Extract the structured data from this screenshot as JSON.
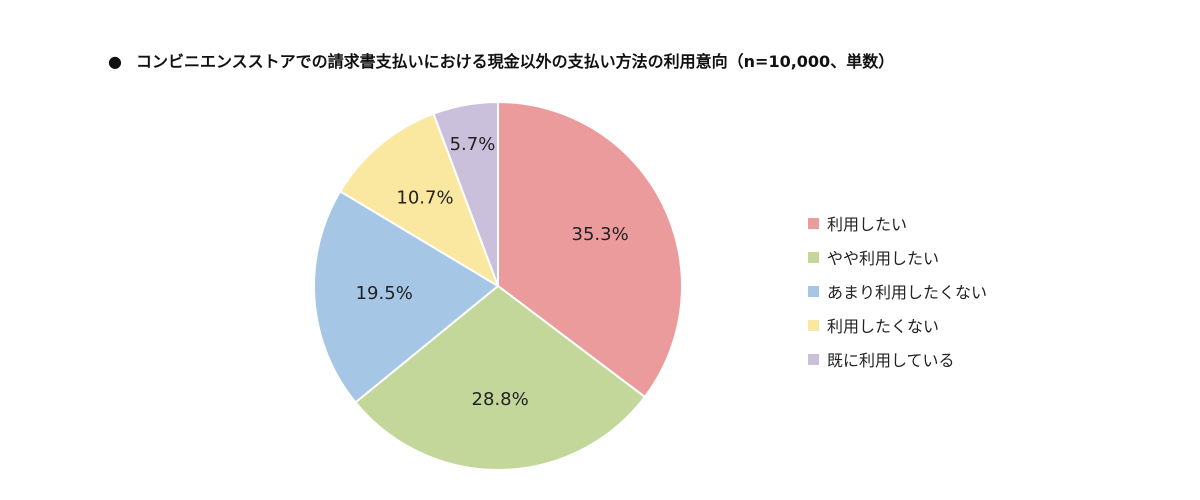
{
  "title": "コンビニエンスストアでの請求書支払いにおける現金以外の支払い方法の利用意向（n=10,000、単数）",
  "title_bullet": "●",
  "chart_data": {
    "type": "pie",
    "categories": [
      "利用したい",
      "やや利用したい",
      "あまり利用したくない",
      "利用したくない",
      "既に利用している"
    ],
    "values": [
      35.3,
      28.8,
      19.5,
      10.7,
      5.7
    ],
    "labels": [
      "35.3%",
      "28.8%",
      "19.5%",
      "10.7%",
      "5.7%"
    ],
    "colors": [
      "#ec9b9d",
      "#c4d79b",
      "#a6c6e6",
      "#fbe8a0",
      "#cbc0db"
    ],
    "legend_position": "right",
    "start_angle_deg": 0,
    "direction": "clockwise"
  }
}
